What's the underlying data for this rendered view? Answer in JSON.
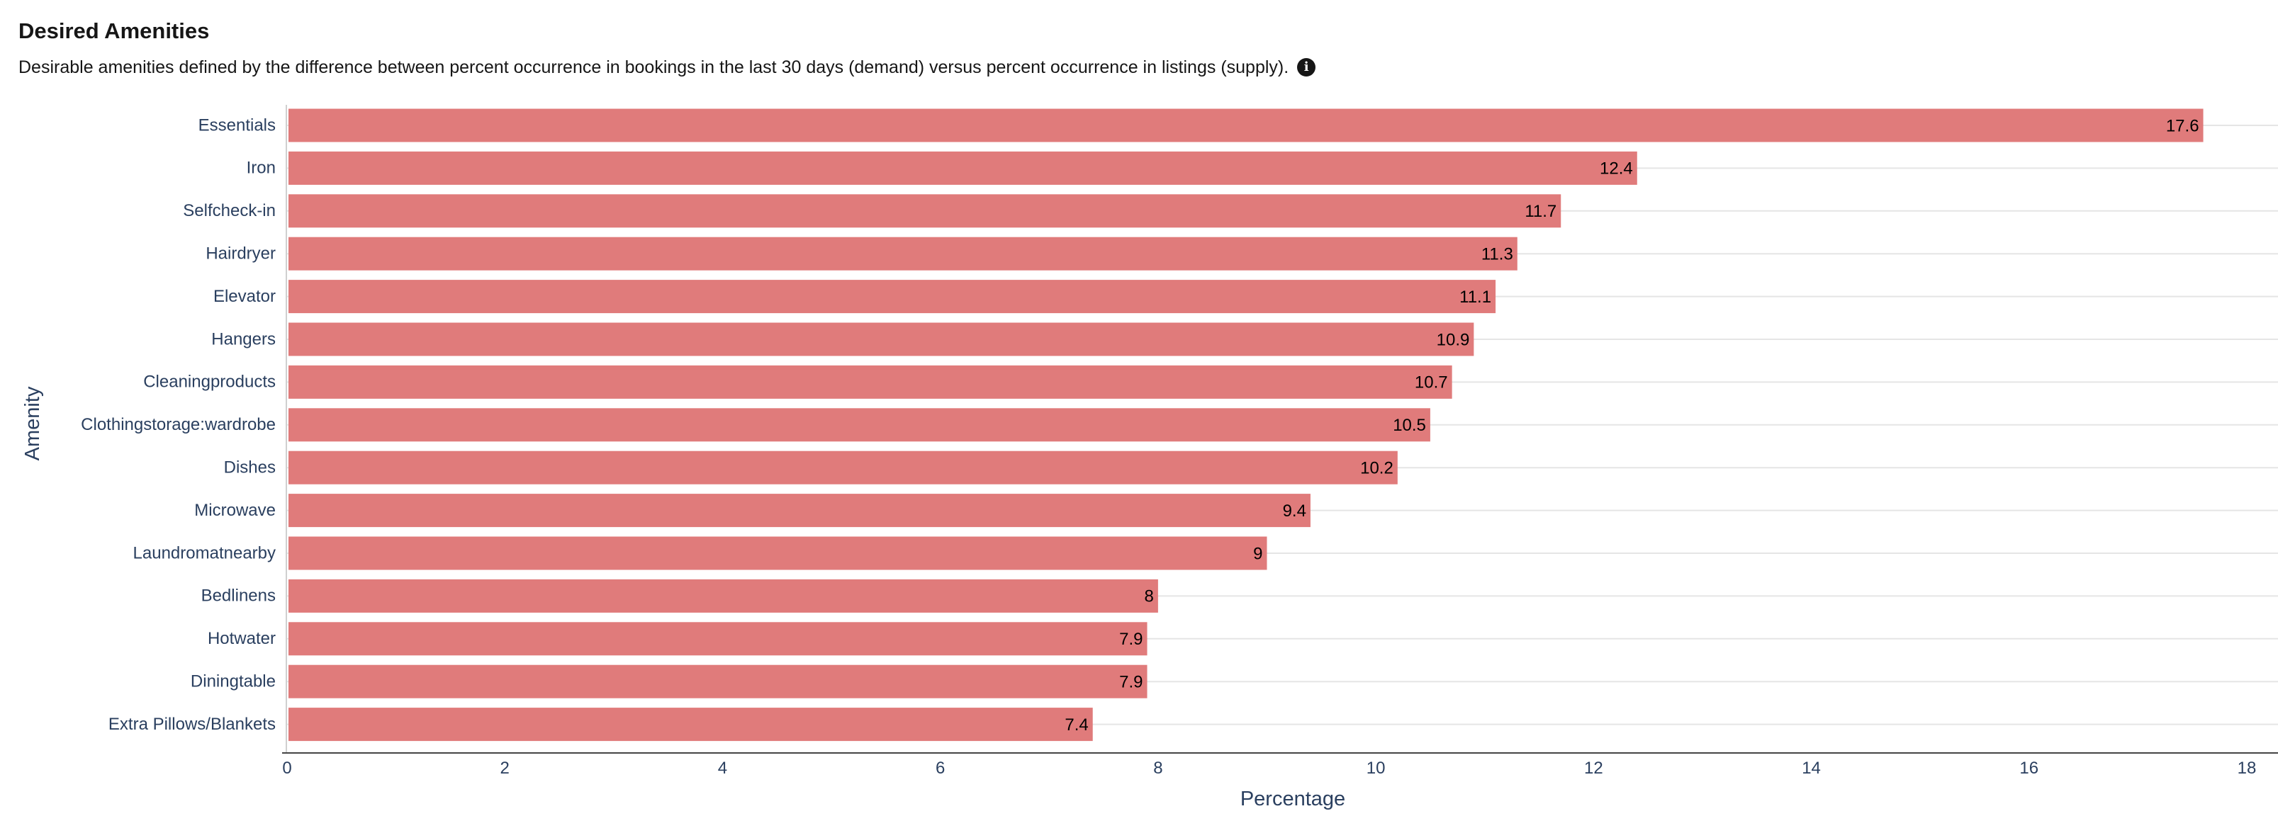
{
  "header": {
    "title": "Desired Amenities",
    "subtitle": "Desirable amenities defined by the difference between percent occurrence in bookings in the last 30 days (demand) versus percent occurrence in listings (supply).",
    "info_icon": "info-icon"
  },
  "colors": {
    "bar": "#e07b7b",
    "axis_text": "#2a3f5f",
    "grid": "#e5e5e5",
    "axis_line": "#444444"
  },
  "chart_data": {
    "type": "bar",
    "orientation": "horizontal",
    "categories": [
      "Essentials",
      "Iron",
      "Selfcheck-in",
      "Hairdryer",
      "Elevator",
      "Hangers",
      "Cleaningproducts",
      "Clothingstorage:wardrobe",
      "Dishes",
      "Microwave",
      "Laundromatnearby",
      "Bedlinens",
      "Hotwater",
      "Diningtable",
      "Extra Pillows/Blankets"
    ],
    "values": [
      17.6,
      12.4,
      11.7,
      11.3,
      11.1,
      10.9,
      10.7,
      10.5,
      10.2,
      9.4,
      9,
      8,
      7.9,
      7.9,
      7.4
    ],
    "value_labels": [
      "17.6",
      "12.4",
      "11.7",
      "11.3",
      "11.1",
      "10.9",
      "10.7",
      "10.5",
      "10.2",
      "9.4",
      "9",
      "8",
      "7.9",
      "7.9",
      "7.4"
    ],
    "xlabel": "Percentage",
    "ylabel": "Amenity",
    "xlim": [
      0,
      18
    ],
    "xticks": [
      0,
      2,
      4,
      6,
      8,
      10,
      12,
      14,
      16,
      18
    ],
    "xtick_labels": [
      "0",
      "2",
      "4",
      "6",
      "8",
      "10",
      "12",
      "14",
      "16",
      "18"
    ],
    "grid": "horizontal",
    "legend": "none"
  }
}
